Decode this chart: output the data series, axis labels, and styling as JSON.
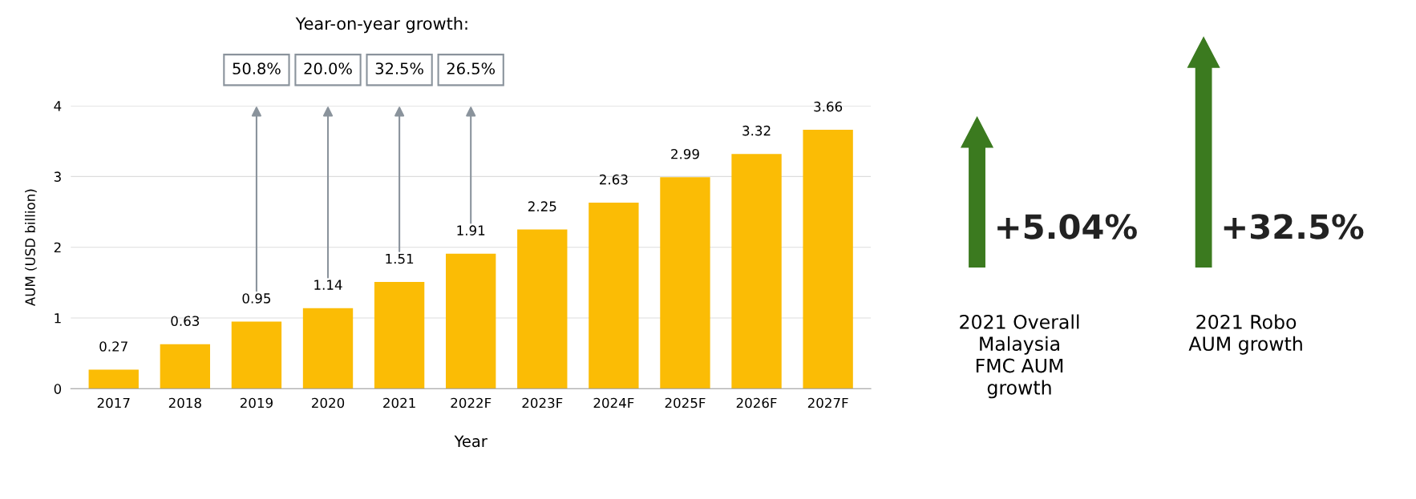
{
  "chart_data": {
    "type": "bar",
    "xlabel": "Year",
    "ylabel": "AUM (USD billion)",
    "categories": [
      "2017",
      "2018",
      "2019",
      "2020",
      "2021",
      "2022F",
      "2023F",
      "2024F",
      "2025F",
      "2026F",
      "2027F"
    ],
    "values": [
      0.27,
      0.63,
      0.95,
      1.14,
      1.51,
      1.91,
      2.25,
      2.63,
      2.99,
      3.32,
      3.66
    ],
    "color": "#fbbc05",
    "data_labels": true,
    "ylim": [
      0,
      4
    ],
    "yticks": [
      0,
      1,
      2,
      3,
      4
    ],
    "grid": "y",
    "legend": false,
    "annotations": [
      "Year-on-year growth:",
      "50.8%",
      "20.0%",
      "32.5%",
      "26.5%",
      "+5.04%",
      "2021 Overall\nMalaysia\nFMC AUM\ngrowth",
      "+32.5%",
      "2021 Robo\nAUM growth"
    ]
  }
}
